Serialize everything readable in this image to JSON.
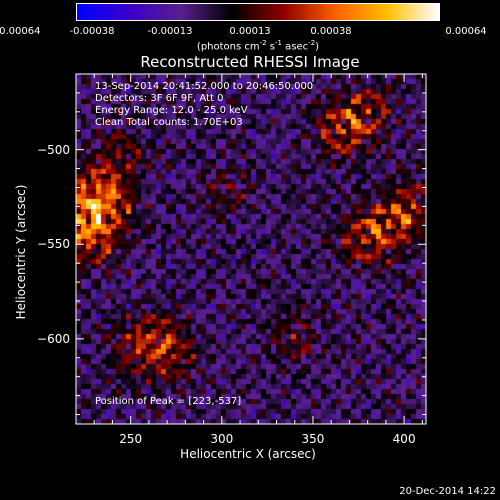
{
  "chart_data": {
    "type": "heatmap",
    "title": "Reconstructed RHESSI Image",
    "xlabel": "Heliocentric X (arcsec)",
    "ylabel": "Heliocentric Y (arcsec)",
    "xlim": [
      220,
      412
    ],
    "ylim": [
      -645,
      -460
    ],
    "x_ticks": [
      250,
      300,
      350,
      400
    ],
    "y_ticks": [
      -500,
      -550,
      -600
    ],
    "colorbar": {
      "ticks": [
        "-0.00064",
        "-0.00038",
        "-0.00013",
        "0.00013",
        "0.00038",
        "0.00064"
      ],
      "units_label": "(photons cm-2 s-1 asec-2)",
      "range": [
        -0.00064,
        0.00064
      ],
      "colors": [
        "#0000ff",
        "#3b00c8",
        "#5a2090",
        "#000000",
        "#900000",
        "#ff6000",
        "#ffc000",
        "#ffffff"
      ]
    },
    "annotations": [
      "13-Sep-2014 20:41:52.000 to 20:46:50.000",
      "Detectors: 3F 6F 9F, Att 0",
      "Energy Range: 12.0 - 25.0 keV",
      "Clean     Total counts: 1.70E+03"
    ],
    "peak_label": "Position of Peak = [223,-537]",
    "peak_position": [
      223,
      -537
    ],
    "blobs": [
      {
        "x": 223,
        "y": -537,
        "peak": 0.00064
      },
      {
        "x": 232,
        "y": -520,
        "peak": 0.0005
      },
      {
        "x": 240,
        "y": -532,
        "peak": 0.00045
      },
      {
        "x": 228,
        "y": -550,
        "peak": 0.0004
      },
      {
        "x": 365,
        "y": -490,
        "peak": 0.0005
      },
      {
        "x": 380,
        "y": -480,
        "peak": 0.00042
      },
      {
        "x": 392,
        "y": -540,
        "peak": 0.00048
      },
      {
        "x": 378,
        "y": -548,
        "peak": 0.00045
      },
      {
        "x": 405,
        "y": -530,
        "peak": 0.0004
      },
      {
        "x": 263,
        "y": -598,
        "peak": 0.0004
      },
      {
        "x": 275,
        "y": -610,
        "peak": 0.00035
      },
      {
        "x": 252,
        "y": -608,
        "peak": 0.00032
      },
      {
        "x": 245,
        "y": -502,
        "peak": 0.0003
      },
      {
        "x": 340,
        "y": -598,
        "peak": 0.00025
      },
      {
        "x": 305,
        "y": -520,
        "peak": 0.00022
      }
    ]
  },
  "footer": {
    "timestamp": "20-Dec-2014 14:22"
  }
}
